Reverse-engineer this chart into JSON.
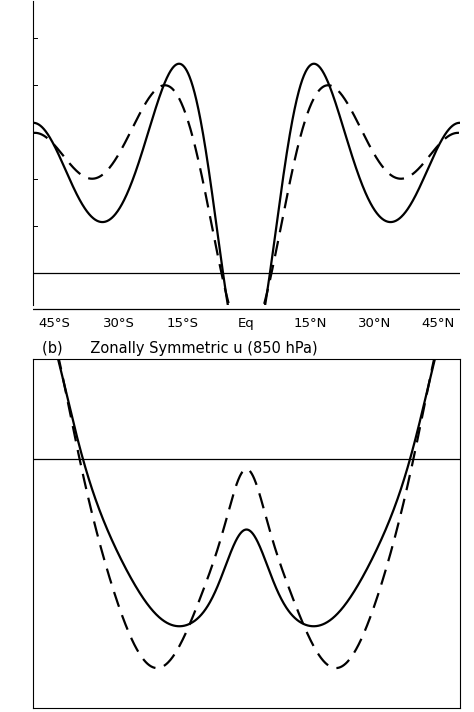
{
  "title_b": "(b)      Zonally Symmetric u (850 hPa)",
  "xtick_labels": [
    "45°S",
    "30°S",
    "15°S",
    "Eq",
    "15°N",
    "30°N",
    "45°N"
  ],
  "xtick_positions": [
    -45,
    -30,
    -15,
    0,
    15,
    30,
    45
  ],
  "xlim": [
    -50,
    50
  ],
  "line_color": "#000000",
  "line_width": 1.6,
  "dash_pattern": [
    7,
    4
  ]
}
